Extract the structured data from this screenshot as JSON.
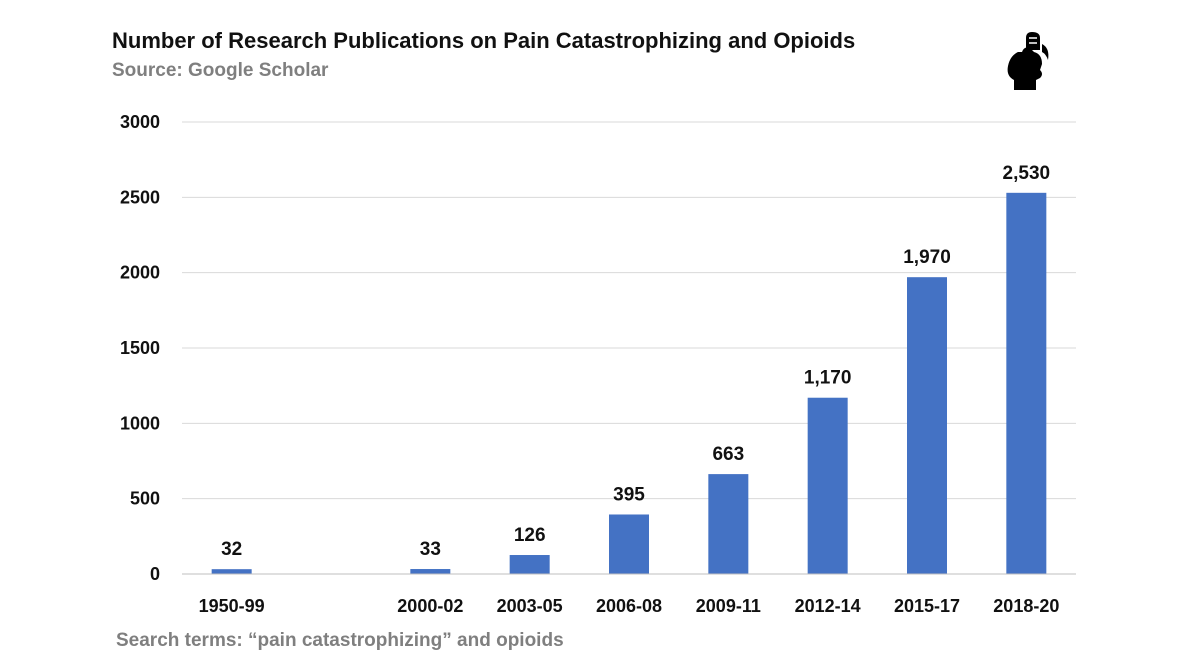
{
  "chart_data": {
    "type": "bar",
    "title": "Number of Research Publications on Pain Catastrophizing and Opioids",
    "subtitle": "Source: Google Scholar",
    "footnote": "Search terms: “pain catastrophizing” and opioids",
    "categories": [
      "1950-99",
      "",
      "2000-02",
      "2003-05",
      "2006-08",
      "2009-11",
      "2012-14",
      "2015-17",
      "2018-20"
    ],
    "values": [
      32,
      null,
      33,
      126,
      395,
      663,
      1170,
      1970,
      2530
    ],
    "data_labels": [
      "32",
      "",
      "33",
      "126",
      "395",
      "663",
      "1,170",
      "1,970",
      "2,530"
    ],
    "y_ticks": [
      "0",
      "500",
      "1000",
      "1500",
      "2000",
      "2500",
      "3000"
    ],
    "ylim": [
      0,
      3000
    ],
    "grid": true,
    "legend": "none",
    "bar_color": "#4472c4",
    "grid_color": "#d9d9d9"
  },
  "logo": {
    "icon": "raised-fist-head-logo-icon"
  }
}
